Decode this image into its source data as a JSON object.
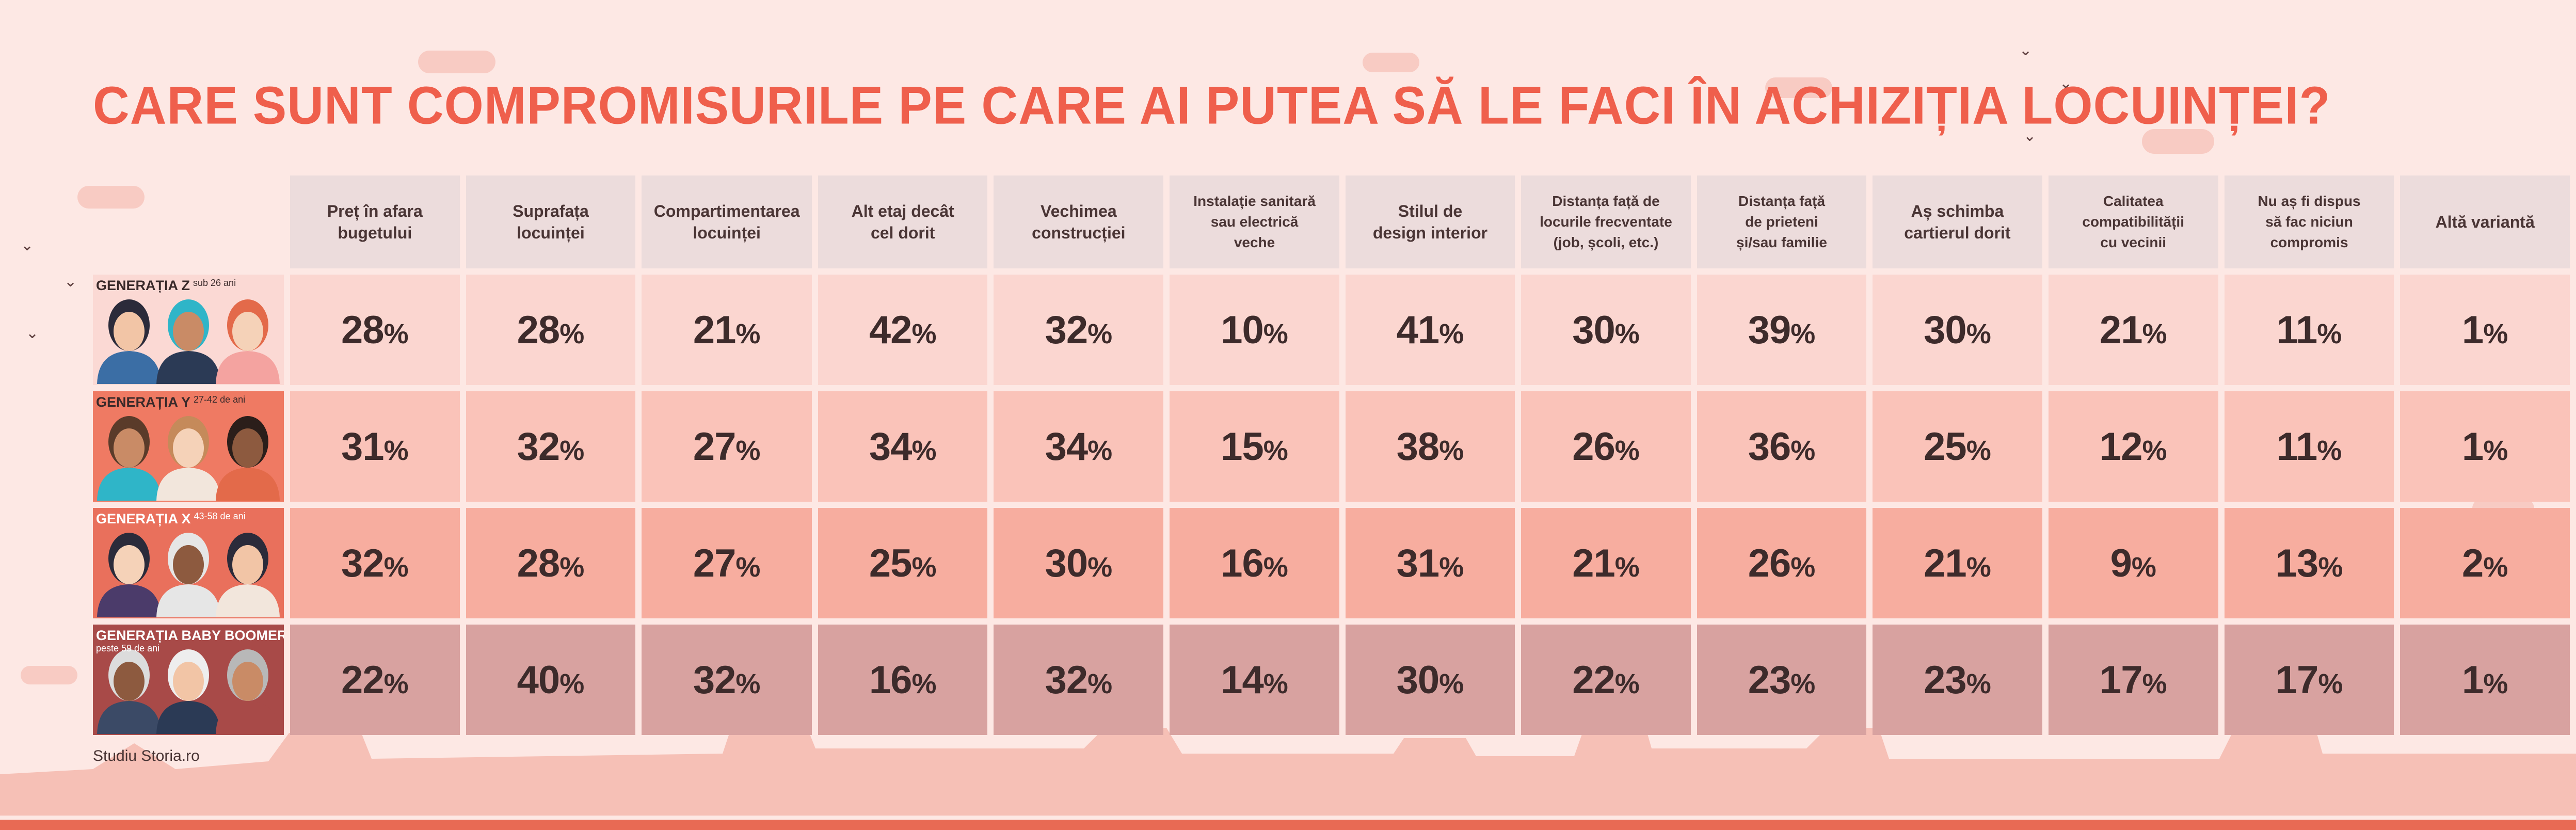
{
  "title": "CARE SUNT COMPROMISURILE PE CARE AI PUTEA SĂ LE FACI ÎN ACHIZIȚIA LOCUINȚEI?",
  "source": "Studiu Storia.ro",
  "percent_sign": "%",
  "colors": {
    "title": "#ef5f4c",
    "background": "#fde8e4",
    "header_cell": "#ecdcdc",
    "row_backgrounds": [
      "#fbd6d0",
      "#fac3b9",
      "#f7ad9f",
      "#d8a2a0"
    ]
  },
  "chart_data": {
    "type": "table",
    "title": "CARE SUNT COMPROMISURILE PE CARE AI PUTEA SĂ LE FACI ÎN ACHIZIȚIA LOCUINȚEI?",
    "unit": "%",
    "columns": [
      [
        "Preț în afara",
        "bugetului"
      ],
      [
        "Suprafața",
        "locuinței"
      ],
      [
        "Compartimentarea",
        "locuinței"
      ],
      [
        "Alt etaj decât",
        "cel dorit"
      ],
      [
        "Vechimea",
        "construcției"
      ],
      [
        "Instalație sanitară",
        "sau electrică",
        "veche"
      ],
      [
        "Stilul de",
        "design interior"
      ],
      [
        "Distanța față de",
        "locurile frecventate",
        "(job, școli, etc.)"
      ],
      [
        "Distanța față",
        "de prieteni",
        "și/sau familie"
      ],
      [
        "Aș schimba",
        "cartierul dorit"
      ],
      [
        "Calitatea",
        "compatibilității",
        "cu vecinii"
      ],
      [
        "Nu aș fi dispus",
        "să fac niciun",
        "compromis"
      ],
      [
        "Altă variantă"
      ]
    ],
    "rows": [
      {
        "name": "GENERAȚIA Z",
        "age": "sub 26 ani",
        "text_color": "#3a2a2a",
        "bg": "#fbd9d4",
        "values": [
          28,
          28,
          21,
          42,
          32,
          10,
          41,
          30,
          39,
          30,
          21,
          11,
          1
        ]
      },
      {
        "name": "GENERAȚIA Y",
        "age": "27-42 de ani",
        "text_color": "#3a2a2a",
        "bg": "#ef7a63",
        "values": [
          31,
          32,
          27,
          34,
          34,
          15,
          38,
          26,
          36,
          25,
          12,
          11,
          1
        ]
      },
      {
        "name": "GENERAȚIA X",
        "age": "43-58 de ani",
        "text_color": "#ffffff",
        "bg": "#e9705c",
        "values": [
          32,
          28,
          27,
          25,
          30,
          16,
          31,
          21,
          26,
          21,
          9,
          13,
          2
        ]
      },
      {
        "name": "GENERAȚIA BABY BOOMERS",
        "age": "peste 59 de ani",
        "text_color": "#ffffff",
        "bg": "#a84a48",
        "values": [
          22,
          40,
          32,
          16,
          32,
          14,
          30,
          22,
          23,
          23,
          17,
          17,
          1
        ]
      }
    ]
  }
}
